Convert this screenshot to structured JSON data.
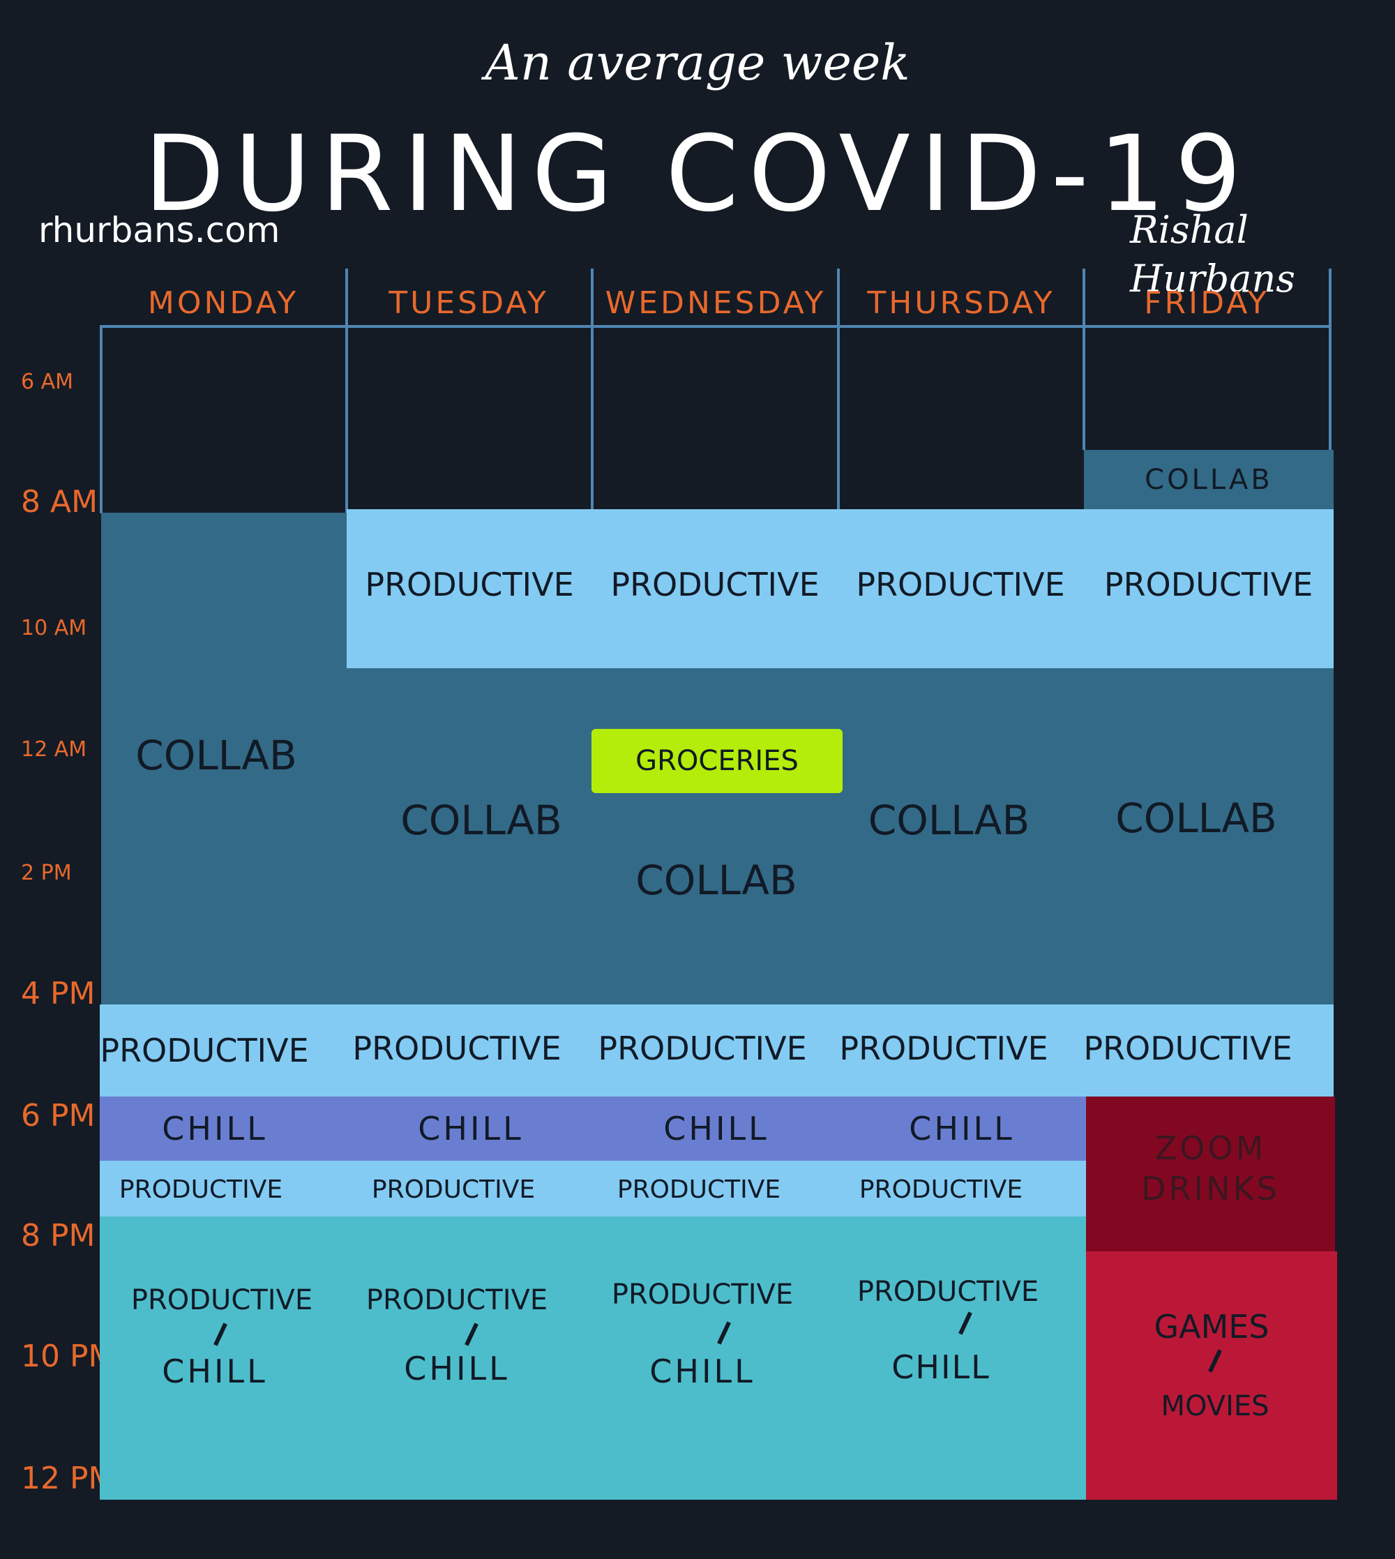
{
  "header": {
    "subtitle": "An average week",
    "title": "DURING COVID-19",
    "website": "rhurbans.com",
    "author": "Rishal Hurbans"
  },
  "days": [
    "MONDAY",
    "TUESDAY",
    "WEDNESDAY",
    "THURSDAY",
    "FRIDAY"
  ],
  "times": [
    "6 AM",
    "8 AM",
    "10 AM",
    "12 AM",
    "2 PM",
    "4 PM",
    "6 PM",
    "8 PM",
    "10 PM",
    "12 PM"
  ],
  "blocks": {
    "fri_early_collab": "COLLAB",
    "mon_collab": "COLLAB",
    "tue_productive": "PRODUCTIVE",
    "wed_productive": "PRODUCTIVE",
    "thu_productive": "PRODUCTIVE",
    "fri_productive": "PRODUCTIVE",
    "groceries": "GROCERIES",
    "tue_collab": "COLLAB",
    "wed_collab": "COLLAB",
    "thu_collab": "COLLAB",
    "fri_collab": "COLLAB",
    "afternoon_productive": [
      "PRODUCTIVE",
      "PRODUCTIVE",
      "PRODUCTIVE",
      "PRODUCTIVE",
      "PRODUCTIVE"
    ],
    "chill": [
      "CHILL",
      "CHILL",
      "CHILL",
      "CHILL"
    ],
    "evening_productive": [
      "PRODUCTIVE",
      "PRODUCTIVE",
      "PRODUCTIVE",
      "PRODUCTIVE"
    ],
    "zoom_drinks_1": "ZOOM",
    "zoom_drinks_2": "DRINKS",
    "night_productive": [
      "PRODUCTIVE",
      "PRODUCTIVE",
      "PRODUCTIVE",
      "PRODUCTIVE"
    ],
    "night_chill": [
      "CHILL",
      "CHILL",
      "CHILL",
      "CHILL"
    ],
    "games": "GAMES",
    "movies": "MOVIES"
  },
  "colors": {
    "background": "#141b25",
    "collab": "#336a87",
    "productive": "#83cbf3",
    "chill": "#6a7ed1",
    "productive_chill": "#4ebdcb",
    "zoom_drinks": "#820821",
    "games_movies": "#bb1837",
    "groceries": "#b4ed09",
    "accent": "#e9692c"
  }
}
